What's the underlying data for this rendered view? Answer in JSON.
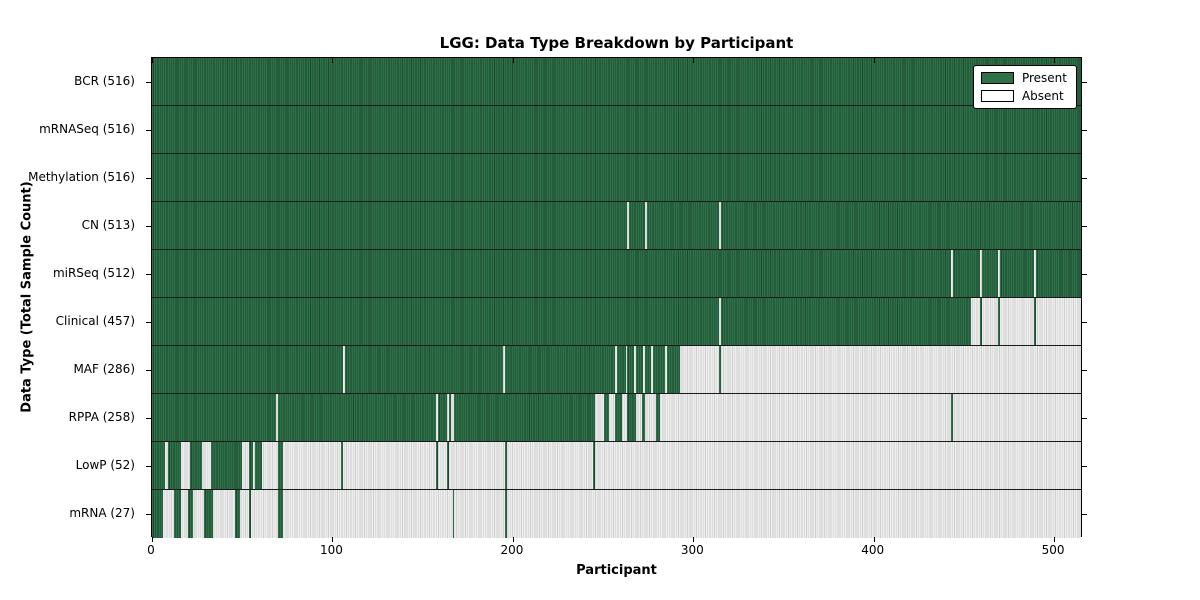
{
  "chart_data": {
    "type": "heatmap",
    "title": "LGG: Data Type Breakdown by Participant",
    "xlabel": "Participant",
    "ylabel": "Data Type (Total Sample Count)",
    "xlim": [
      0,
      516
    ],
    "x_ticks": [
      0,
      100,
      200,
      300,
      400,
      500
    ],
    "grid": false,
    "legend_position": "upper right",
    "colors": {
      "present": "#2e7047",
      "present_line": "#1c4a30",
      "absent": "#ededed",
      "absent_line": "#d0d0d0"
    },
    "legend": {
      "entries": [
        {
          "label": "Present",
          "swatch": "#2e7047"
        },
        {
          "label": "Absent",
          "swatch": "#ffffff"
        }
      ]
    },
    "rows": [
      {
        "label": "BCR (516)",
        "count": 516,
        "present_segments": [
          [
            0,
            516
          ]
        ]
      },
      {
        "label": "mRNASeq (516)",
        "count": 516,
        "present_segments": [
          [
            0,
            516
          ]
        ]
      },
      {
        "label": "Methylation (516)",
        "count": 516,
        "present_segments": [
          [
            0,
            516
          ]
        ]
      },
      {
        "label": "CN (513)",
        "count": 513,
        "present_segments": [
          [
            0,
            264
          ],
          [
            265,
            274
          ],
          [
            275,
            315
          ],
          [
            316,
            516
          ]
        ]
      },
      {
        "label": "miRSeq (512)",
        "count": 512,
        "present_segments": [
          [
            0,
            444
          ],
          [
            445,
            460
          ],
          [
            461,
            470
          ],
          [
            471,
            490
          ],
          [
            491,
            516
          ]
        ]
      },
      {
        "label": "Clinical (457)",
        "count": 457,
        "present_segments": [
          [
            0,
            315
          ],
          [
            316,
            455
          ],
          [
            460,
            461
          ],
          [
            470,
            471
          ],
          [
            490,
            491
          ]
        ]
      },
      {
        "label": "MAF (286)",
        "count": 286,
        "present_segments": [
          [
            0,
            106
          ],
          [
            107,
            195
          ],
          [
            196,
            257
          ],
          [
            258,
            263
          ],
          [
            264,
            268
          ],
          [
            269,
            273
          ],
          [
            274,
            277
          ],
          [
            278,
            285
          ],
          [
            286,
            293
          ],
          [
            315,
            316
          ]
        ]
      },
      {
        "label": "RPPA (258)",
        "count": 258,
        "present_segments": [
          [
            0,
            69
          ],
          [
            70,
            158
          ],
          [
            159,
            164
          ],
          [
            165,
            166
          ],
          [
            168,
            246
          ],
          [
            251,
            254
          ],
          [
            257,
            261
          ],
          [
            264,
            269
          ],
          [
            272,
            274
          ],
          [
            280,
            282
          ],
          [
            444,
            445
          ]
        ]
      },
      {
        "label": "LowP (52)",
        "count": 52,
        "present_segments": [
          [
            0,
            7
          ],
          [
            9,
            16
          ],
          [
            21,
            28
          ],
          [
            33,
            50
          ],
          [
            54,
            56
          ],
          [
            57,
            61
          ],
          [
            70,
            73
          ],
          [
            105,
            106
          ],
          [
            158,
            159
          ],
          [
            164,
            165
          ],
          [
            196,
            197
          ],
          [
            245,
            246
          ]
        ]
      },
      {
        "label": "mRNA (27)",
        "count": 27,
        "present_segments": [
          [
            0,
            6
          ],
          [
            12,
            16
          ],
          [
            20,
            23
          ],
          [
            29,
            34
          ],
          [
            46,
            49
          ],
          [
            54,
            55
          ],
          [
            70,
            73
          ],
          [
            167,
            168
          ],
          [
            196,
            197
          ]
        ]
      }
    ]
  }
}
